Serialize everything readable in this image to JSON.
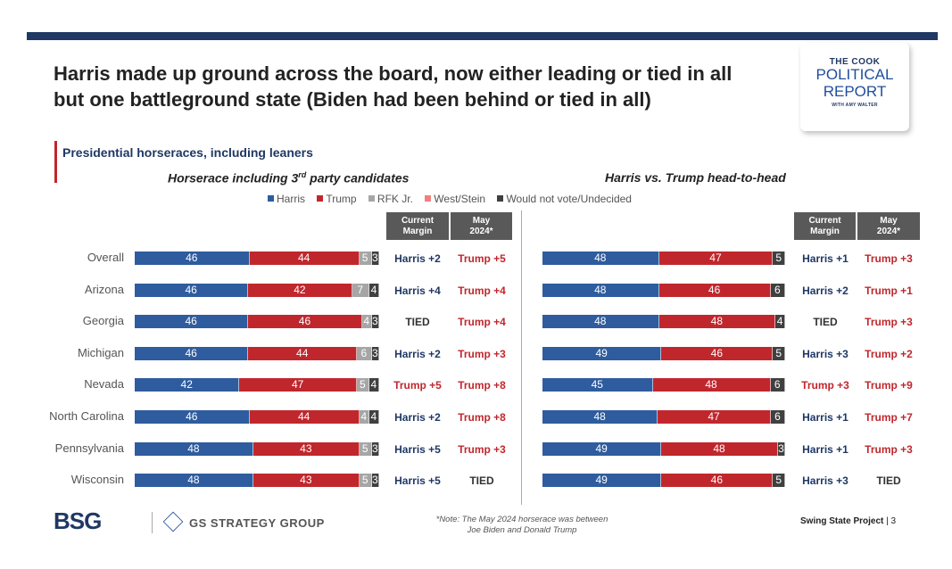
{
  "title": "Harris made up ground across the board, now either leading or tied in all but one battleground state (Biden had been behind or tied in all)",
  "logo": {
    "line1": "THE COOK",
    "line2": "POLITICAL",
    "line3": "REPORT",
    "line4": "WITH AMY WALTER"
  },
  "subtitle": "Presidential horseraces, including leaners",
  "colors": {
    "harris": "#2e5c9e",
    "trump": "#c0272d",
    "rfk": "#a6a6a6",
    "west_stein": "#f08080",
    "undecided": "#404040",
    "margin_harris": "#1f3864",
    "margin_trump": "#c0272d",
    "margin_tied": "#333333",
    "header_bg": "#595959"
  },
  "panel_left": {
    "title_prefix": "Horserace including 3",
    "title_sup": "rd",
    "title_suffix": " party candidates"
  },
  "panel_right": {
    "title": "Harris vs. Trump head-to-head"
  },
  "legend": {
    "harris": "Harris",
    "trump": "Trump",
    "rfk": "RFK Jr.",
    "west_stein": "West/Stein",
    "undecided": "Would not vote/Undecided"
  },
  "headers": {
    "current_l1": "Current",
    "current_l2": "Margin",
    "may_l1": "May",
    "may_l2": "2024*"
  },
  "note_l1": "*Note: The May 2024 horserace was between",
  "note_l2": "Joe Biden and Donald Trump",
  "footer": {
    "bsg": "BSG",
    "gs": "GS STRATEGY GROUP",
    "project": "Swing State Project",
    "page": "3"
  },
  "chart_data": [
    {
      "type": "bar",
      "stacked": true,
      "orientation": "horizontal",
      "title": "Horserace including 3rd party candidates",
      "categories": [
        "Overall",
        "Arizona",
        "Georgia",
        "Michigan",
        "Nevada",
        "North Carolina",
        "Pennsylvania",
        "Wisconsin"
      ],
      "series": [
        {
          "name": "Harris",
          "values": [
            46,
            46,
            46,
            46,
            42,
            46,
            48,
            48
          ]
        },
        {
          "name": "Trump",
          "values": [
            44,
            42,
            46,
            44,
            47,
            44,
            43,
            43
          ]
        },
        {
          "name": "RFK Jr.",
          "values": [
            5,
            7,
            4,
            6,
            5,
            4,
            5,
            5
          ]
        },
        {
          "name": "West/Stein",
          "values": [
            0,
            0,
            0,
            0,
            0,
            0,
            0,
            0
          ]
        },
        {
          "name": "Would not vote/Undecided",
          "values": [
            3,
            4,
            3,
            3,
            4,
            4,
            3,
            3
          ]
        }
      ],
      "current_margin": [
        "Harris +2",
        "Harris +4",
        "TIED",
        "Harris +2",
        "Trump +5",
        "Harris +2",
        "Harris +5",
        "Harris +5"
      ],
      "may_2024": [
        "Trump +5",
        "Trump +4",
        "Trump +4",
        "Trump +3",
        "Trump +8",
        "Trump +8",
        "Trump +3",
        "TIED"
      ]
    },
    {
      "type": "bar",
      "stacked": true,
      "orientation": "horizontal",
      "title": "Harris vs. Trump head-to-head",
      "categories": [
        "Overall",
        "Arizona",
        "Georgia",
        "Michigan",
        "Nevada",
        "North Carolina",
        "Pennsylvania",
        "Wisconsin"
      ],
      "series": [
        {
          "name": "Harris",
          "values": [
            48,
            48,
            48,
            49,
            45,
            48,
            49,
            49
          ]
        },
        {
          "name": "Trump",
          "values": [
            47,
            46,
            48,
            46,
            48,
            47,
            48,
            46
          ]
        },
        {
          "name": "Would not vote/Undecided",
          "values": [
            5,
            6,
            4,
            5,
            6,
            6,
            3,
            5
          ]
        }
      ],
      "current_margin": [
        "Harris +1",
        "Harris +2",
        "TIED",
        "Harris +3",
        "Trump +3",
        "Harris +1",
        "Harris +1",
        "Harris +3"
      ],
      "may_2024": [
        "Trump +3",
        "Trump +1",
        "Trump +3",
        "Trump +2",
        "Trump +9",
        "Trump +7",
        "Trump +3",
        "TIED"
      ]
    }
  ]
}
